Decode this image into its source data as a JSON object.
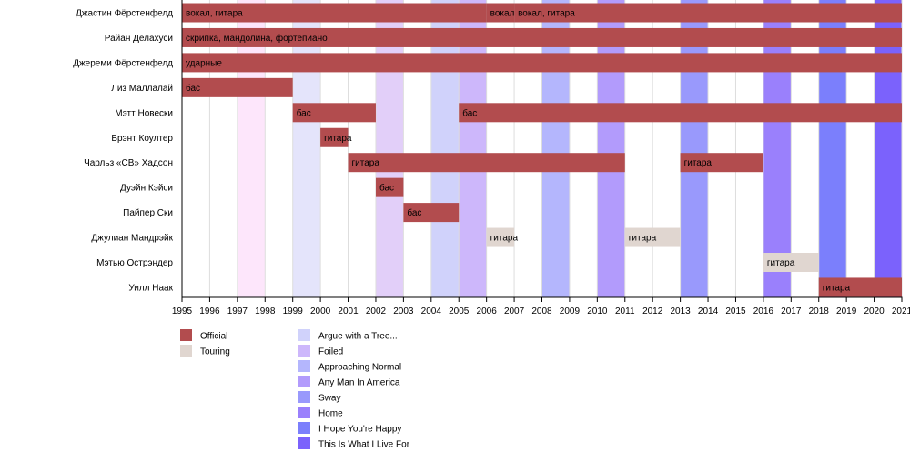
{
  "chart_data": {
    "type": "timeline",
    "title": "",
    "xlabel": "",
    "ylabel": "",
    "xlim": [
      1995,
      2021
    ],
    "x_ticks": [
      1995,
      1996,
      1997,
      1998,
      1999,
      2000,
      2001,
      2002,
      2003,
      2004,
      2005,
      2006,
      2007,
      2008,
      2009,
      2010,
      2011,
      2012,
      2013,
      2014,
      2015,
      2016,
      2017,
      2018,
      2019,
      2020,
      2021
    ],
    "grid": "vertical",
    "colors": {
      "Official": "#b24c4e",
      "Touring": "#e0d6d0"
    },
    "members": [
      {
        "name": "Джастин Фёрстенфелд",
        "periods": [
          {
            "start": 1995,
            "end": 2006,
            "role": "вокал, гитара",
            "type": "Official"
          },
          {
            "start": 2006,
            "end": 2007,
            "role": "вокал",
            "type": "Official"
          },
          {
            "start": 2007,
            "end": 2021,
            "role": "вокал, гитара",
            "type": "Official"
          }
        ]
      },
      {
        "name": "Райан Делахуси",
        "periods": [
          {
            "start": 1995,
            "end": 2021,
            "role": "скрипка, мандолина, фортепиано",
            "type": "Official"
          }
        ]
      },
      {
        "name": "Джереми Фёрстенфелд",
        "periods": [
          {
            "start": 1995,
            "end": 2021,
            "role": "ударные",
            "type": "Official"
          }
        ]
      },
      {
        "name": "Лиз Маллалай",
        "periods": [
          {
            "start": 1995,
            "end": 1999,
            "role": "бас",
            "type": "Official"
          }
        ]
      },
      {
        "name": "Мэтт Новески",
        "periods": [
          {
            "start": 1999,
            "end": 2002,
            "role": "бас",
            "type": "Official"
          },
          {
            "start": 2005,
            "end": 2021,
            "role": "бас",
            "type": "Official"
          }
        ]
      },
      {
        "name": "Брэнт Коултер",
        "periods": [
          {
            "start": 2000,
            "end": 2001,
            "role": "гитара",
            "type": "Official"
          }
        ]
      },
      {
        "name": "Чарльз «СВ» Хадсон",
        "periods": [
          {
            "start": 2001,
            "end": 2011,
            "role": "гитара",
            "type": "Official"
          },
          {
            "start": 2013,
            "end": 2016,
            "role": "гитара",
            "type": "Official"
          }
        ]
      },
      {
        "name": "Дуэйн Кэйси",
        "periods": [
          {
            "start": 2002,
            "end": 2003,
            "role": "бас",
            "type": "Official"
          }
        ]
      },
      {
        "name": "Пайпер Ски",
        "periods": [
          {
            "start": 2003,
            "end": 2005,
            "role": "бас",
            "type": "Official"
          }
        ]
      },
      {
        "name": "Джулиан Мандрэйк",
        "periods": [
          {
            "start": 2006,
            "end": 2007,
            "role": "гитара",
            "type": "Touring"
          },
          {
            "start": 2011,
            "end": 2013,
            "role": "гитара",
            "type": "Touring"
          }
        ]
      },
      {
        "name": "Мэтью Острэндер",
        "periods": [
          {
            "start": 2016,
            "end": 2018,
            "role": "гитара",
            "type": "Touring"
          }
        ]
      },
      {
        "name": "Уилл Наак",
        "periods": [
          {
            "start": 2018,
            "end": 2021,
            "role": "гитара",
            "type": "Official"
          }
        ]
      }
    ],
    "album_bands": [
      {
        "start": 1997,
        "end": 1998,
        "label": "",
        "color": "#fde6fb"
      },
      {
        "start": 1999,
        "end": 2000,
        "label": "",
        "color": "#e4e4fb"
      },
      {
        "start": 2002,
        "end": 2003,
        "label": "",
        "color": "#e2cff9"
      },
      {
        "start": 2004,
        "end": 2005,
        "label": "Argue with a Tree...",
        "color": "#d0d2fb"
      },
      {
        "start": 2005,
        "end": 2006,
        "label": "Foiled",
        "color": "#cdb7fb"
      },
      {
        "start": 2008,
        "end": 2009,
        "label": "Approaching Normal",
        "color": "#b4b6fd"
      },
      {
        "start": 2010,
        "end": 2011,
        "label": "Any Man In America",
        "color": "#b29bfc"
      },
      {
        "start": 2013,
        "end": 2014,
        "label": "Sway",
        "color": "#9999fc"
      },
      {
        "start": 2016,
        "end": 2017,
        "label": "Home",
        "color": "#9a80fc"
      },
      {
        "start": 2018,
        "end": 2019,
        "label": "I Hope You're Happy",
        "color": "#7b7ffc"
      },
      {
        "start": 2020,
        "end": 2021,
        "label": "This Is What I Live For",
        "color": "#7b62fc"
      }
    ],
    "legend": {
      "placement": "bottom-left",
      "member_types": [
        "Official",
        "Touring"
      ],
      "albums": [
        {
          "label": "Argue with a Tree...",
          "color": "#d0d2fb"
        },
        {
          "label": "Foiled",
          "color": "#cdb7fb"
        },
        {
          "label": "Approaching Normal",
          "color": "#b4b6fd"
        },
        {
          "label": "Any Man In America",
          "color": "#b29bfc"
        },
        {
          "label": "Sway",
          "color": "#9999fc"
        },
        {
          "label": "Home",
          "color": "#9a80fc"
        },
        {
          "label": "I Hope You're Happy",
          "color": "#7b7ffc"
        },
        {
          "label": "This Is What I Live For",
          "color": "#7b62fc"
        }
      ]
    }
  }
}
